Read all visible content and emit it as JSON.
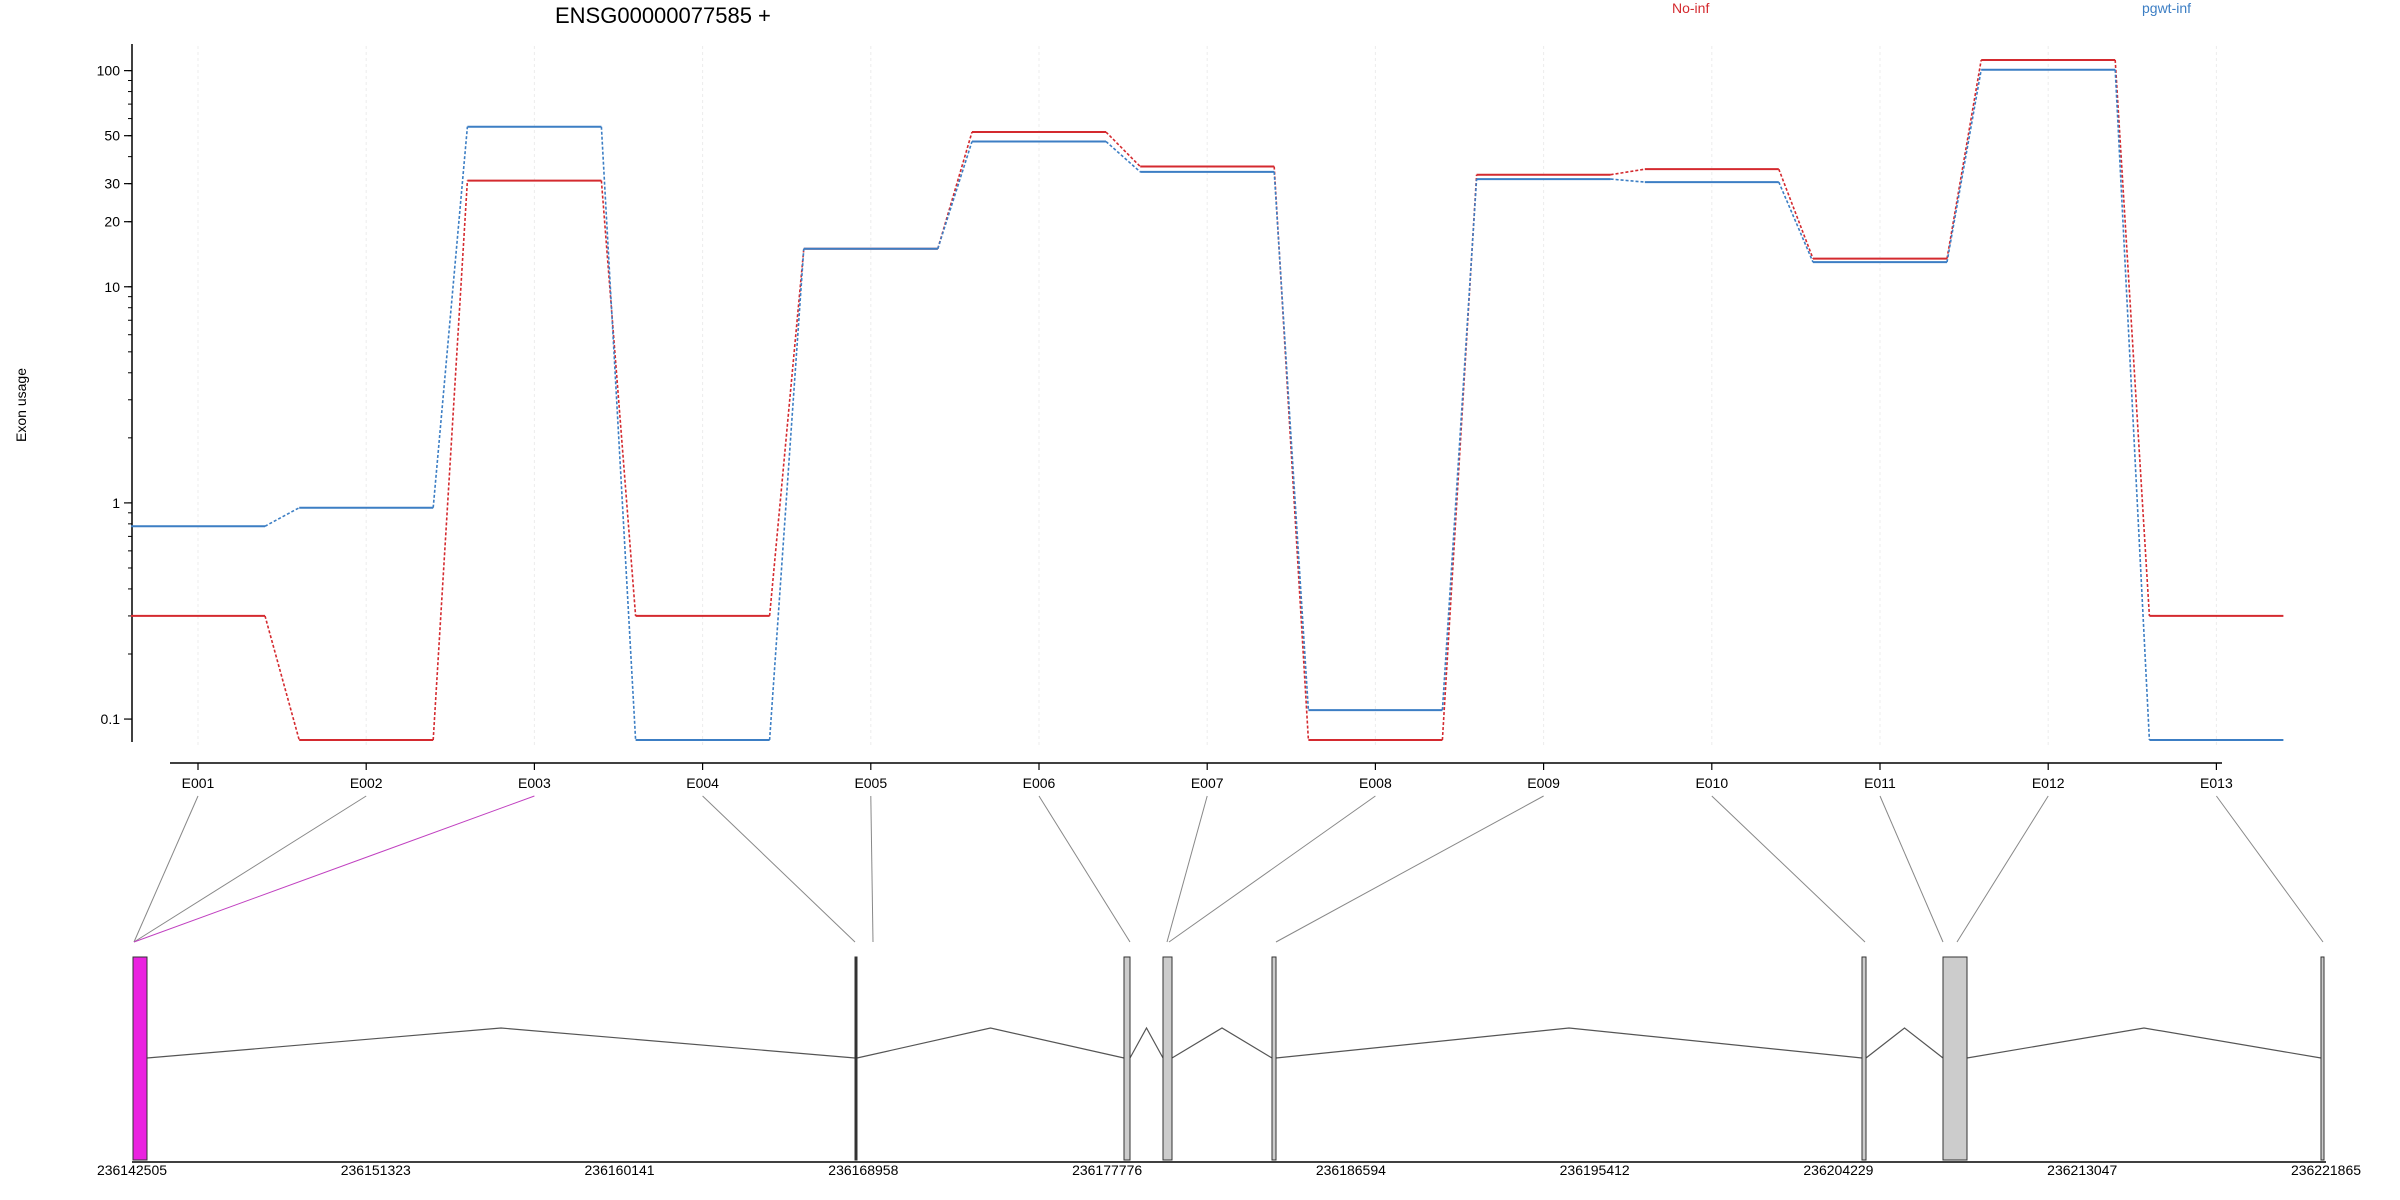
{
  "chart_data": {
    "type": "line",
    "title": "ENSG00000077585 +",
    "ylabel": "Exon usage",
    "xlabel": "",
    "y_scale": "log",
    "y_ticks": [
      0.1,
      1,
      10,
      20,
      30,
      50,
      100
    ],
    "y_tick_labels": [
      "0.1",
      "1",
      "10",
      "20",
      "30",
      "50",
      "100"
    ],
    "grid": "vertical",
    "legend_position": "top",
    "categories": [
      "E001",
      "E002",
      "E003",
      "E004",
      "E005",
      "E006",
      "E007",
      "E008",
      "E009",
      "E010",
      "E011",
      "E012",
      "E013"
    ],
    "series": [
      {
        "name": "No-inf",
        "color": "#d42a2f",
        "values": [
          0.3,
          0.08,
          31,
          0.3,
          15,
          52,
          36,
          0.08,
          33,
          35,
          13.5,
          112,
          0.3
        ]
      },
      {
        "name": "pgwt-inf",
        "color": "#3c7ec4",
        "values": [
          0.78,
          0.95,
          55,
          0.08,
          15,
          47,
          34,
          0.11,
          31.5,
          30.5,
          13,
          101,
          0.08
        ]
      }
    ],
    "gene_model": {
      "genomic_ticks": [
        "236142505",
        "236151323",
        "236160141",
        "236168958",
        "236177776",
        "236186594",
        "236195412",
        "236204229",
        "236213047",
        "236221865"
      ],
      "highlight_color": "#ea22e0",
      "exon_color": "#cccccc",
      "highlighted_exons": [
        "E001",
        "E002",
        "E003"
      ]
    }
  }
}
